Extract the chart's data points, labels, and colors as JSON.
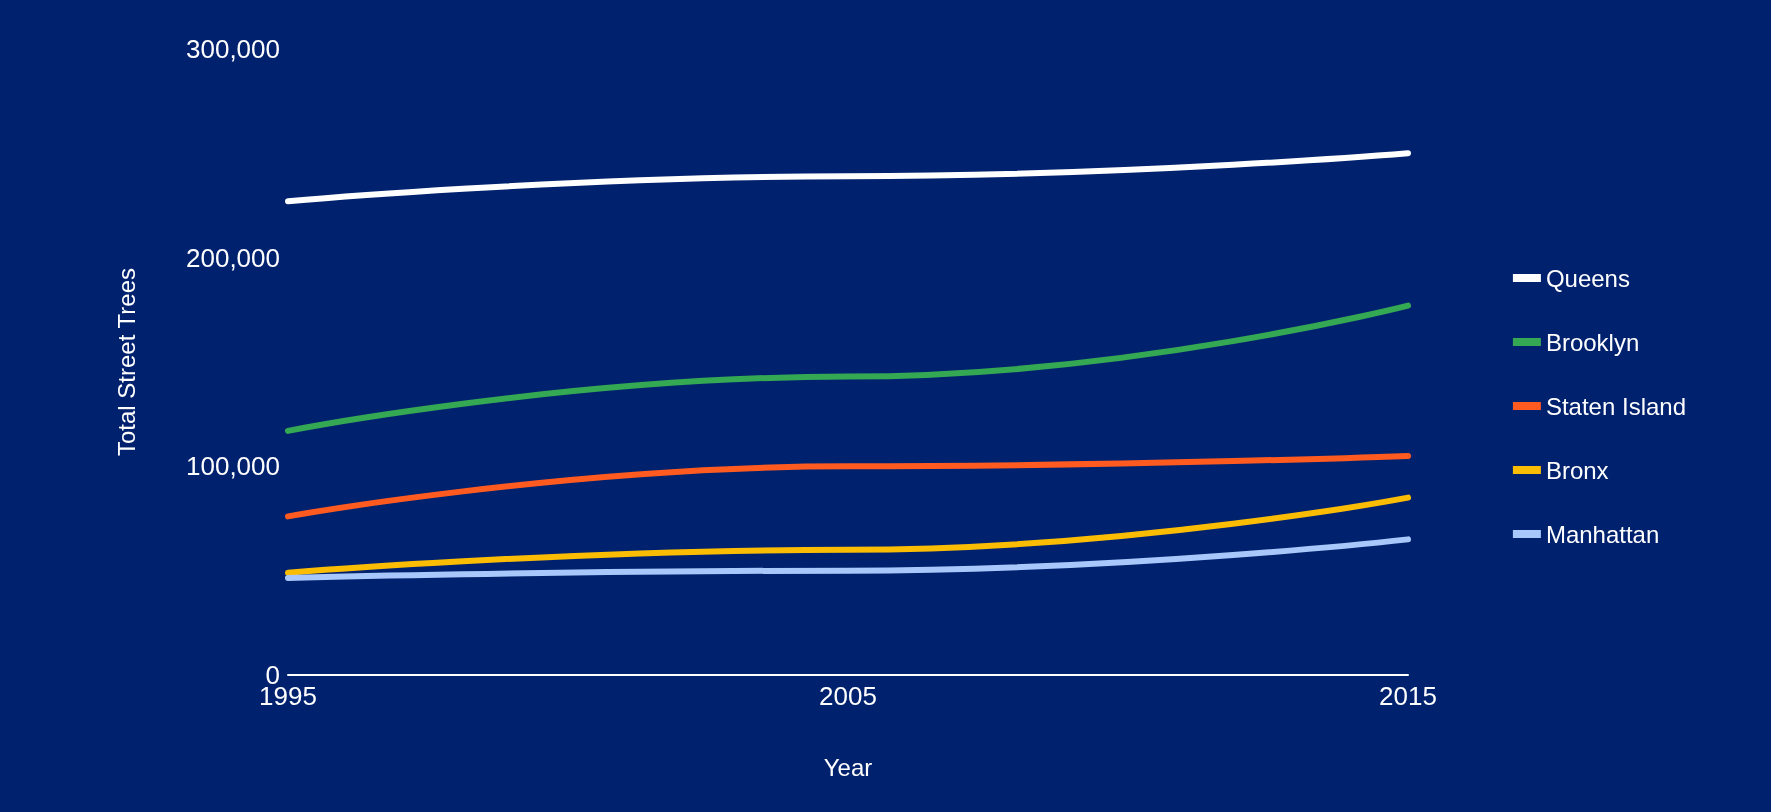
{
  "chart_data": {
    "type": "line",
    "xlabel": "Year",
    "ylabel": "Total Street Trees",
    "x": [
      1995,
      2005,
      2015
    ],
    "xlim": [
      1995,
      2015
    ],
    "xticks": [
      1995,
      2005,
      2015
    ],
    "ylim": [
      0,
      300000
    ],
    "yticks": [
      {
        "value": 0,
        "label": "0"
      },
      {
        "value": 100000,
        "label": "100,000"
      },
      {
        "value": 200000,
        "label": "200,000"
      },
      {
        "value": 300000,
        "label": "300,000"
      }
    ],
    "grid": false,
    "legend": "right",
    "marker": "none",
    "line_style": "solid",
    "series": [
      {
        "name": "Queens",
        "color": "#ffffff",
        "values": [
          227000,
          239000,
          250000
        ]
      },
      {
        "name": "Brooklyn",
        "color": "#34a853",
        "values": [
          117000,
          143000,
          177000
        ]
      },
      {
        "name": "Staten Island",
        "color": "#ff5a1f",
        "values": [
          76000,
          100000,
          105000
        ]
      },
      {
        "name": "Bronx",
        "color": "#fbbc04",
        "values": [
          49000,
          60000,
          85000
        ]
      },
      {
        "name": "Manhattan",
        "color": "#a8c7fa",
        "values": [
          46500,
          50000,
          65000
        ]
      }
    ]
  }
}
